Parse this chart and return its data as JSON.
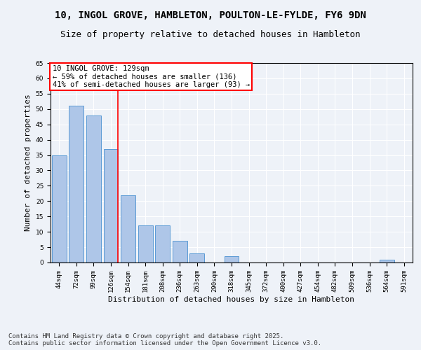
{
  "title_line1": "10, INGOL GROVE, HAMBLETON, POULTON-LE-FYLDE, FY6 9DN",
  "title_line2": "Size of property relative to detached houses in Hambleton",
  "xlabel": "Distribution of detached houses by size in Hambleton",
  "ylabel": "Number of detached properties",
  "categories": [
    "44sqm",
    "72sqm",
    "99sqm",
    "126sqm",
    "154sqm",
    "181sqm",
    "208sqm",
    "236sqm",
    "263sqm",
    "290sqm",
    "318sqm",
    "345sqm",
    "372sqm",
    "400sqm",
    "427sqm",
    "454sqm",
    "482sqm",
    "509sqm",
    "536sqm",
    "564sqm",
    "591sqm"
  ],
  "values": [
    35,
    51,
    48,
    37,
    22,
    12,
    12,
    7,
    3,
    0,
    2,
    0,
    0,
    0,
    0,
    0,
    0,
    0,
    0,
    1,
    0
  ],
  "bar_color": "#aec6e8",
  "bar_edge_color": "#5b9bd5",
  "vline_color": "red",
  "vline_x": 3.425,
  "annotation_text": "10 INGOL GROVE: 129sqm\n← 59% of detached houses are smaller (136)\n41% of semi-detached houses are larger (93) →",
  "annotation_box_color": "white",
  "annotation_box_edge_color": "red",
  "ylim": [
    0,
    65
  ],
  "yticks": [
    0,
    5,
    10,
    15,
    20,
    25,
    30,
    35,
    40,
    45,
    50,
    55,
    60,
    65
  ],
  "footer_line1": "Contains HM Land Registry data © Crown copyright and database right 2025.",
  "footer_line2": "Contains public sector information licensed under the Open Government Licence v3.0.",
  "background_color": "#eef2f8",
  "plot_background_color": "#eef2f8",
  "title_fontsize": 10,
  "subtitle_fontsize": 9,
  "axis_label_fontsize": 8,
  "tick_fontsize": 6.5,
  "annotation_fontsize": 7.5,
  "footer_fontsize": 6.5
}
